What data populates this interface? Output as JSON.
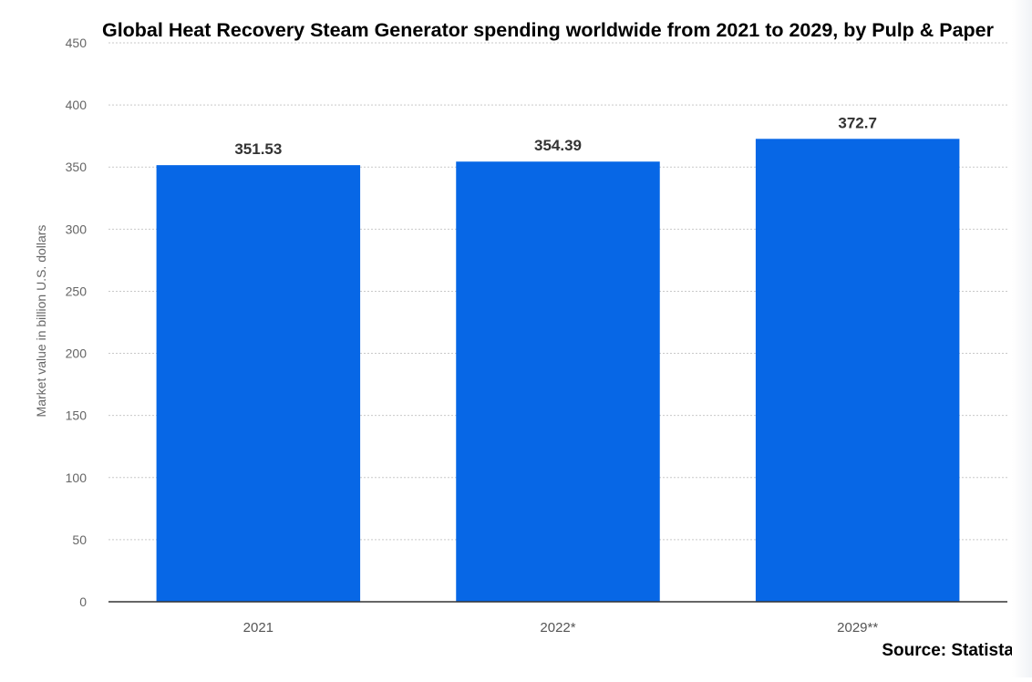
{
  "chart_data": {
    "type": "bar",
    "title": "Global Heat Recovery Steam Generator spending worldwide from 2021 to 2029, by Pulp & Paper",
    "xlabel": "",
    "ylabel": "Market value in billion U.S. dollars",
    "categories": [
      "2021",
      "2022*",
      "2029**"
    ],
    "values": [
      351.53,
      354.39,
      372.7
    ],
    "value_labels": [
      "351.53",
      "354.39",
      "372.7"
    ],
    "ylim": [
      0,
      450
    ],
    "yticks": [
      0,
      50,
      100,
      150,
      200,
      250,
      300,
      350,
      400,
      450
    ],
    "grid": true,
    "legend": "none",
    "bar_color": "#0767e6",
    "source": "Source: Statista"
  }
}
